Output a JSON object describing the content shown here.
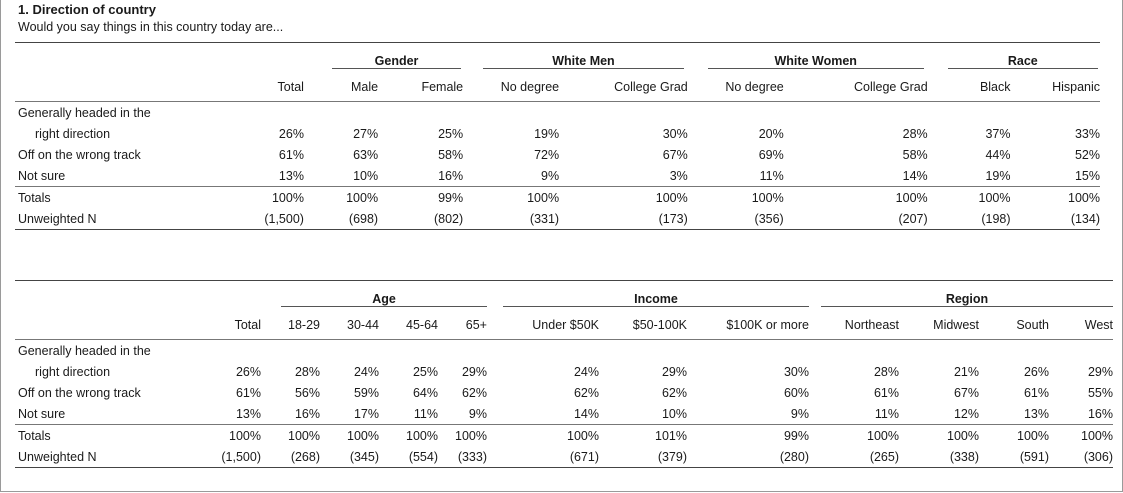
{
  "title": "1. Direction of country",
  "subtitle": "Would you say things in this country today are...",
  "table1": {
    "groups": {
      "gender": "Gender",
      "white_men": "White Men",
      "white_women": "White Women",
      "race": "Race"
    },
    "columns": [
      "Total",
      "Male",
      "Female",
      "No degree",
      "College Grad",
      "No degree",
      "College Grad",
      "Black",
      "Hispanic"
    ],
    "rows": [
      {
        "label": "Generally headed in the",
        "label2": "right direction",
        "values": [
          "26%",
          "27%",
          "25%",
          "19%",
          "30%",
          "20%",
          "28%",
          "37%",
          "33%"
        ]
      },
      {
        "label": "Off on the wrong track",
        "values": [
          "61%",
          "63%",
          "58%",
          "72%",
          "67%",
          "69%",
          "58%",
          "44%",
          "52%"
        ]
      },
      {
        "label": "Not sure",
        "values": [
          "13%",
          "10%",
          "16%",
          "9%",
          "3%",
          "11%",
          "14%",
          "19%",
          "15%"
        ]
      }
    ],
    "totals": {
      "label": "Totals",
      "values": [
        "100%",
        "100%",
        "99%",
        "100%",
        "100%",
        "100%",
        "100%",
        "100%",
        "100%"
      ]
    },
    "n": {
      "label": "Unweighted N",
      "values": [
        "(1,500)",
        "(698)",
        "(802)",
        "(331)",
        "(173)",
        "(356)",
        "(207)",
        "(198)",
        "(134)"
      ]
    }
  },
  "table2": {
    "groups": {
      "age": "Age",
      "income": "Income",
      "region": "Region"
    },
    "columns": [
      "Total",
      "18-29",
      "30-44",
      "45-64",
      "65+",
      "Under $50K",
      "$50-100K",
      "$100K or more",
      "Northeast",
      "Midwest",
      "South",
      "West"
    ],
    "rows": [
      {
        "label": "Generally headed in the",
        "label2": "right direction",
        "values": [
          "26%",
          "28%",
          "24%",
          "25%",
          "29%",
          "24%",
          "29%",
          "30%",
          "28%",
          "21%",
          "26%",
          "29%"
        ]
      },
      {
        "label": "Off on the wrong track",
        "values": [
          "61%",
          "56%",
          "59%",
          "64%",
          "62%",
          "62%",
          "62%",
          "60%",
          "61%",
          "67%",
          "61%",
          "55%"
        ]
      },
      {
        "label": "Not sure",
        "values": [
          "13%",
          "16%",
          "17%",
          "11%",
          "9%",
          "14%",
          "10%",
          "9%",
          "11%",
          "12%",
          "13%",
          "16%"
        ]
      }
    ],
    "totals": {
      "label": "Totals",
      "values": [
        "100%",
        "100%",
        "100%",
        "100%",
        "100%",
        "100%",
        "101%",
        "99%",
        "100%",
        "100%",
        "100%",
        "100%"
      ]
    },
    "n": {
      "label": "Unweighted N",
      "values": [
        "(1,500)",
        "(268)",
        "(345)",
        "(554)",
        "(333)",
        "(671)",
        "(379)",
        "(280)",
        "(265)",
        "(338)",
        "(591)",
        "(306)"
      ]
    }
  }
}
